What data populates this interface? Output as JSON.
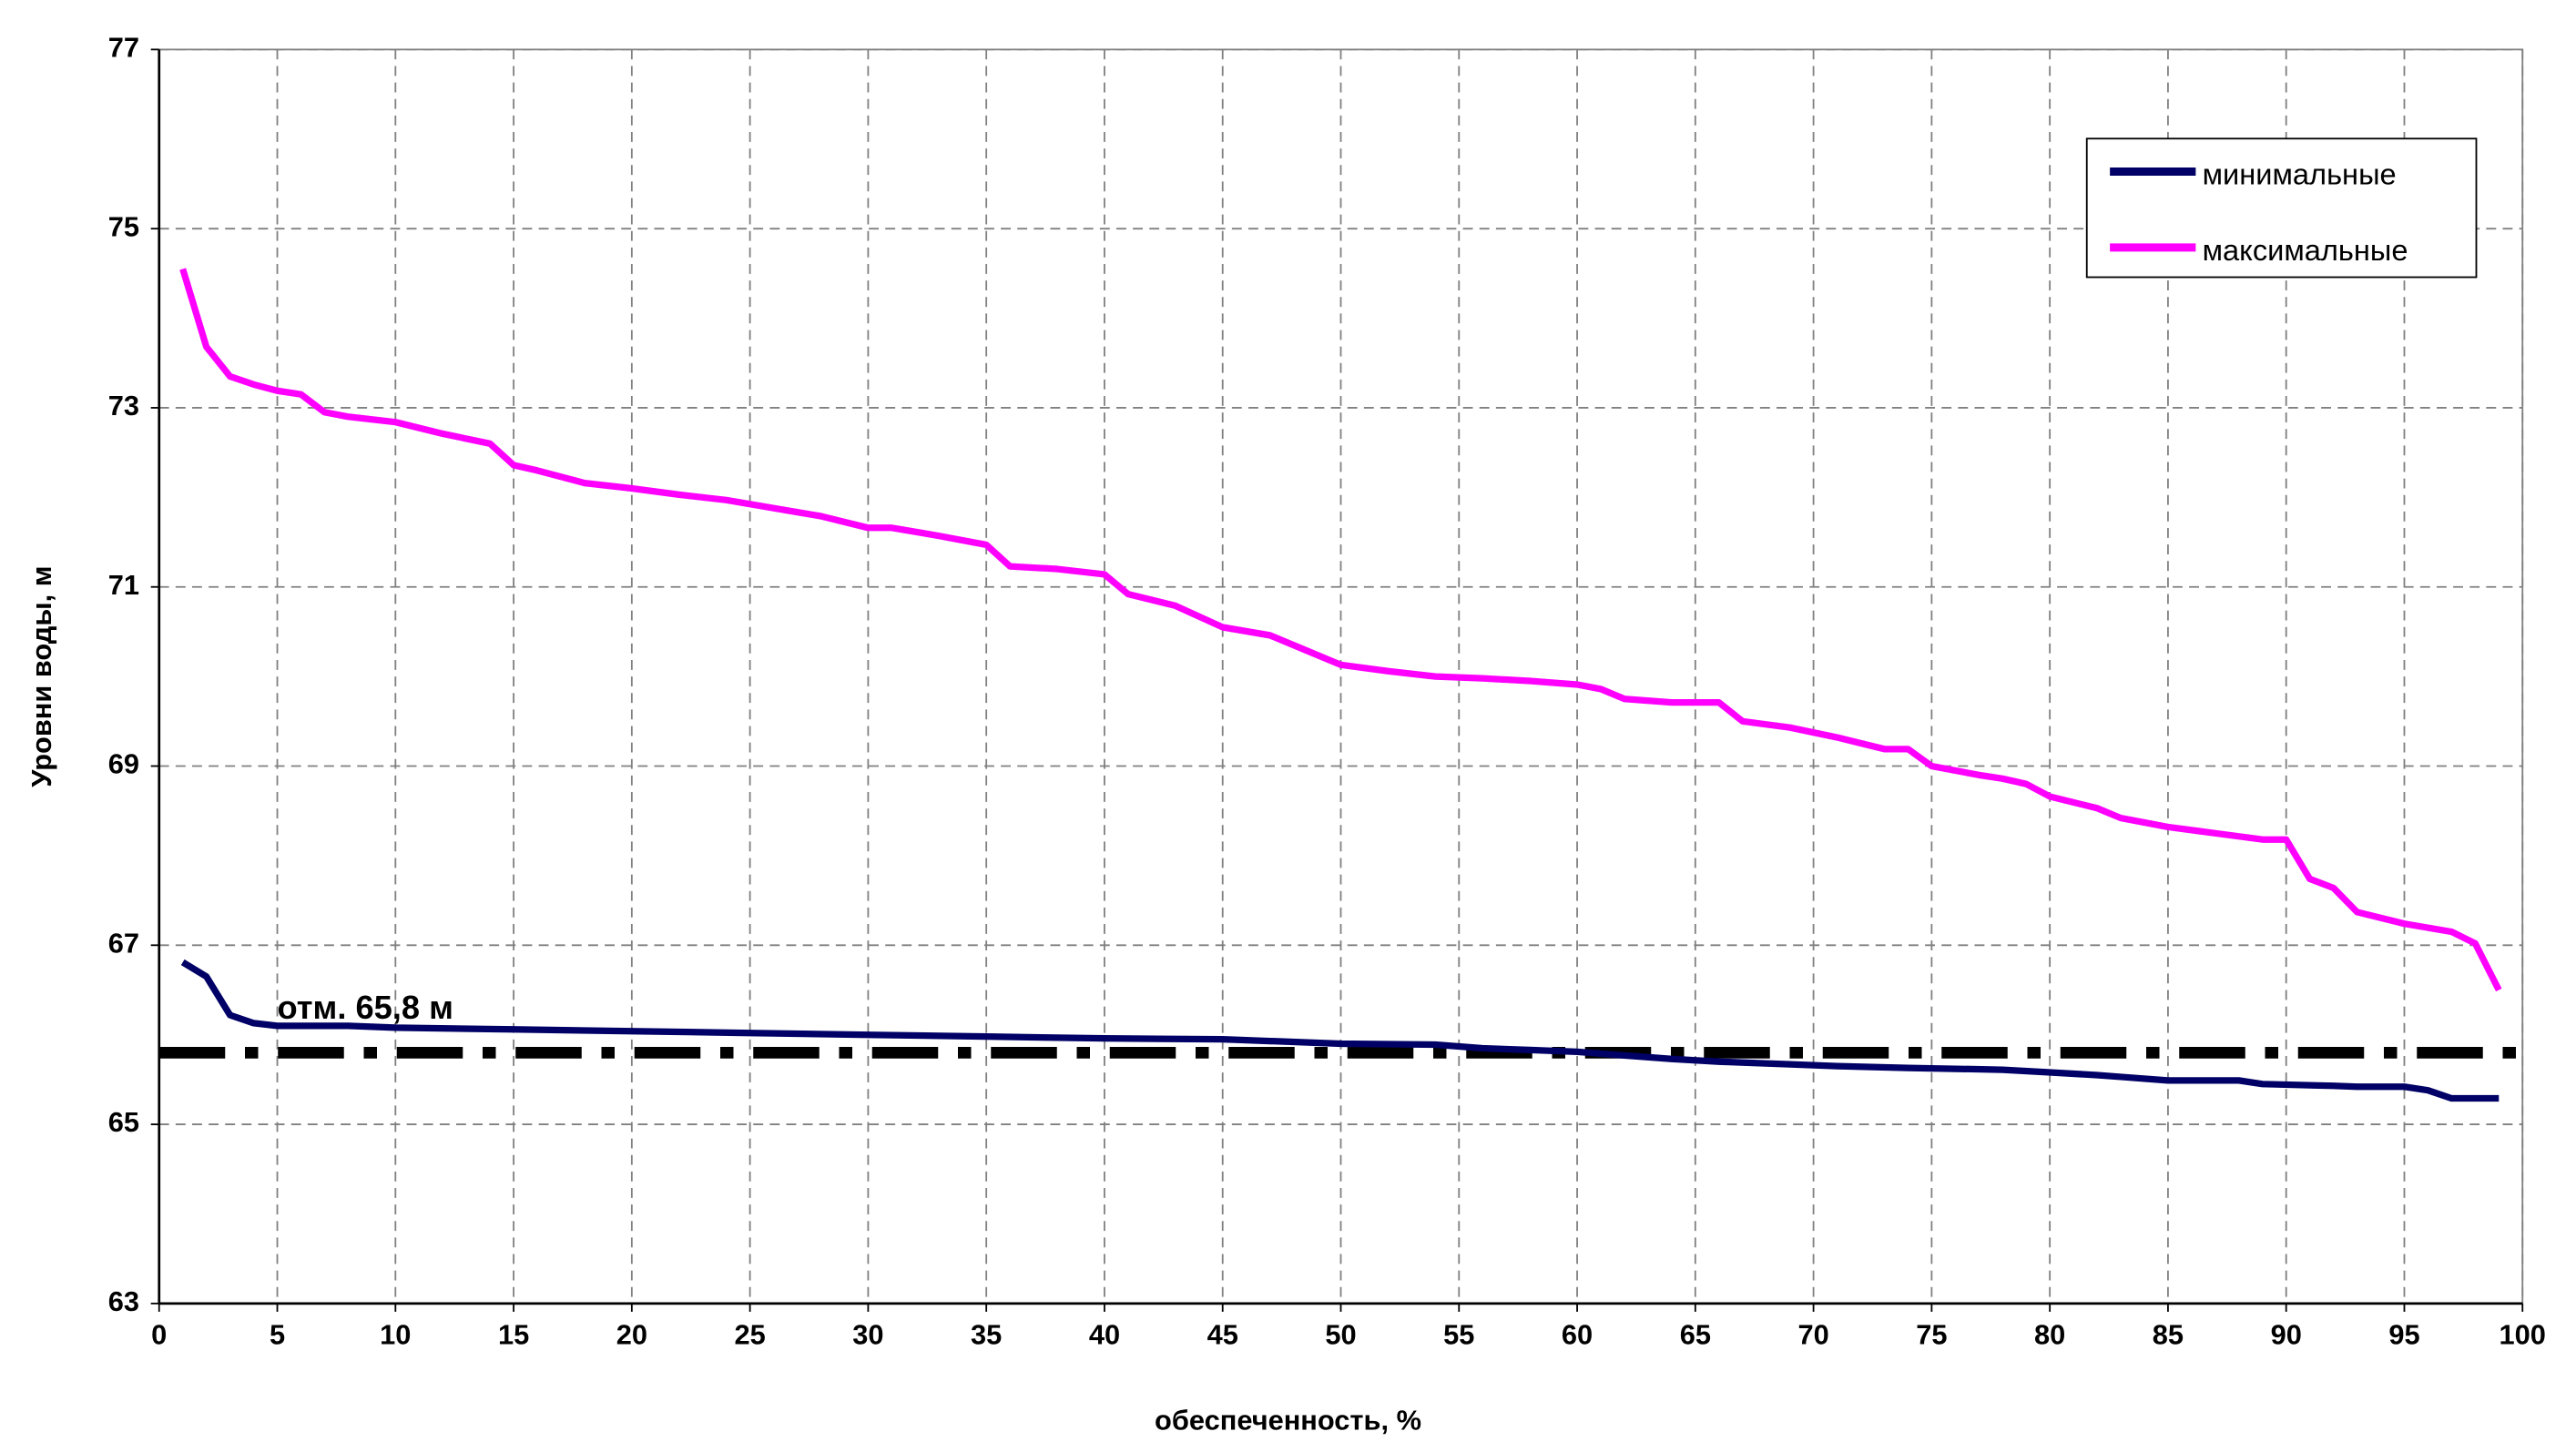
{
  "chart_data": {
    "type": "line",
    "x_label": "обеспеченность, %",
    "y_label": "Уровни воды, м",
    "xlim": [
      0,
      100
    ],
    "xticks": [
      0,
      5,
      10,
      15,
      20,
      25,
      30,
      35,
      40,
      45,
      50,
      55,
      60,
      65,
      70,
      75,
      80,
      85,
      90,
      95,
      100
    ],
    "ylim": [
      63,
      77
    ],
    "yticks": [
      63,
      65,
      67,
      69,
      71,
      73,
      75,
      77
    ],
    "grid": true,
    "legend": "top-right",
    "reference_line": {
      "value": 65.8,
      "label": "отм. 65,8 м",
      "color": "#000000"
    },
    "series": [
      {
        "name": "минимальные",
        "color": "#000066",
        "x": [
          1,
          2,
          3,
          4,
          5,
          8,
          10,
          15,
          20,
          25,
          30,
          35,
          40,
          45,
          50,
          54,
          56,
          58,
          60,
          62,
          64,
          66,
          69,
          71,
          74,
          78,
          80,
          82,
          83,
          85,
          88,
          89,
          92,
          93,
          95,
          96,
          97,
          99
        ],
        "values": [
          66.81,
          66.65,
          66.22,
          66.13,
          66.1,
          66.1,
          66.08,
          66.06,
          66.04,
          66.02,
          66.0,
          65.98,
          65.96,
          65.95,
          65.9,
          65.89,
          65.85,
          65.83,
          65.81,
          65.77,
          65.73,
          65.7,
          65.67,
          65.65,
          65.63,
          65.61,
          65.58,
          65.55,
          65.53,
          65.49,
          65.49,
          65.45,
          65.43,
          65.42,
          65.42,
          65.38,
          65.29,
          65.29
        ]
      },
      {
        "name": "максимальные",
        "color": "#ff00ff",
        "x": [
          1,
          2,
          3,
          4,
          5,
          6,
          7,
          8,
          10,
          12,
          14,
          15,
          16,
          18,
          20,
          22,
          24,
          26,
          28,
          30,
          31,
          33,
          35,
          36,
          38,
          40,
          41,
          43,
          45,
          47,
          49,
          50,
          52,
          54,
          56,
          58,
          60,
          61,
          62,
          64,
          66,
          67,
          69,
          71,
          73,
          74,
          75,
          77,
          78,
          79,
          80,
          82,
          83,
          85,
          87,
          89,
          90,
          91,
          92,
          93,
          95,
          97,
          98,
          99
        ],
        "values": [
          74.55,
          73.68,
          73.35,
          73.26,
          73.19,
          73.15,
          72.95,
          72.9,
          72.84,
          72.71,
          72.6,
          72.36,
          72.3,
          72.16,
          72.1,
          72.03,
          71.97,
          71.88,
          71.79,
          71.66,
          71.66,
          71.57,
          71.47,
          71.23,
          71.2,
          71.14,
          70.92,
          70.79,
          70.55,
          70.46,
          70.24,
          70.13,
          70.06,
          70.0,
          69.98,
          69.95,
          69.91,
          69.86,
          69.75,
          69.71,
          69.71,
          69.5,
          69.43,
          69.32,
          69.19,
          69.19,
          69.0,
          68.9,
          68.86,
          68.8,
          68.66,
          68.53,
          68.42,
          68.32,
          68.25,
          68.18,
          68.18,
          67.74,
          67.64,
          67.37,
          67.24,
          67.15,
          67.02,
          66.5
        ]
      }
    ]
  }
}
